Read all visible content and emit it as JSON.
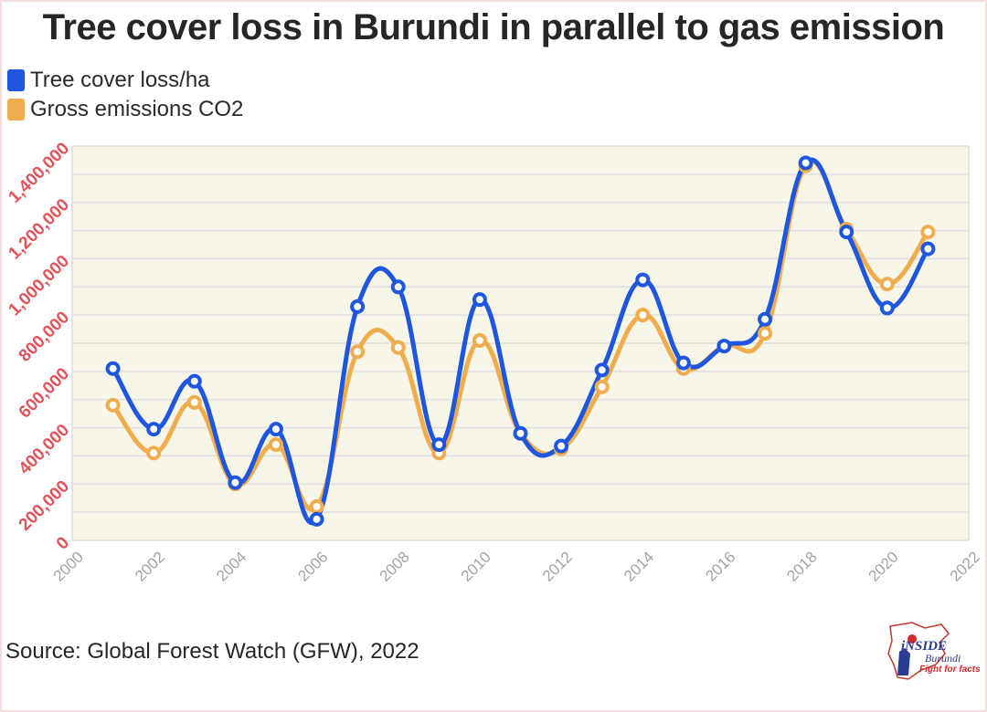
{
  "page": {
    "title": "Tree cover loss in Burundi in parallel to gas emission",
    "source": "Source: Global Forest Watch (GFW), 2022"
  },
  "logo": {
    "text": "iNSIDE",
    "sub": "Burundi",
    "tagline": "Fight for facts"
  },
  "colors": {
    "tree_loss": "#1f56e0",
    "emissions": "#f0ad4e",
    "plot_bg": "#f7f6e8",
    "y_tick": "#e0535a",
    "x_tick": "#a3a3a3"
  },
  "chart_data": {
    "type": "line",
    "title": "Tree cover loss in Burundi in parallel to gas emission",
    "xlabel": "",
    "ylabel": "",
    "xlim": [
      2000,
      2022
    ],
    "ylim": [
      0,
      1400000
    ],
    "x_ticks": [
      2000,
      2002,
      2004,
      2006,
      2008,
      2010,
      2012,
      2014,
      2016,
      2018,
      2020,
      2022
    ],
    "x_tick_labels": [
      "2000",
      "2002",
      "2004",
      "2006",
      "2008",
      "2010",
      "2012",
      "2014",
      "2016",
      "2018",
      "2020",
      "2022"
    ],
    "y_ticks": [
      0,
      200000,
      400000,
      600000,
      800000,
      1000000,
      1200000,
      1400000
    ],
    "y_tick_labels": [
      "0",
      "200,000",
      "400,000",
      "600,000",
      "800,000",
      "1,000,000",
      "1,200,000",
      "1,400,000"
    ],
    "grid": true,
    "smooth": true,
    "legend_position": "top-left",
    "x": [
      2001,
      2002,
      2003,
      2004,
      2005,
      2006,
      2007,
      2008,
      2009,
      2010,
      2011,
      2012,
      2013,
      2014,
      2015,
      2016,
      2017,
      2018,
      2019,
      2020,
      2021
    ],
    "series": [
      {
        "name": "Tree cover loss/ha",
        "color": "#1f56e0",
        "values": [
          610000,
          395000,
          565000,
          205000,
          395000,
          75000,
          830000,
          900000,
          340000,
          855000,
          380000,
          335000,
          605000,
          925000,
          630000,
          690000,
          785000,
          1340000,
          1095000,
          825000,
          1035000
        ]
      },
      {
        "name": "Gross emissions CO2",
        "color": "#f0ad4e",
        "values": [
          480000,
          310000,
          490000,
          200000,
          340000,
          120000,
          670000,
          685000,
          310000,
          710000,
          380000,
          325000,
          545000,
          800000,
          610000,
          690000,
          735000,
          1330000,
          1105000,
          910000,
          1095000
        ]
      }
    ]
  }
}
